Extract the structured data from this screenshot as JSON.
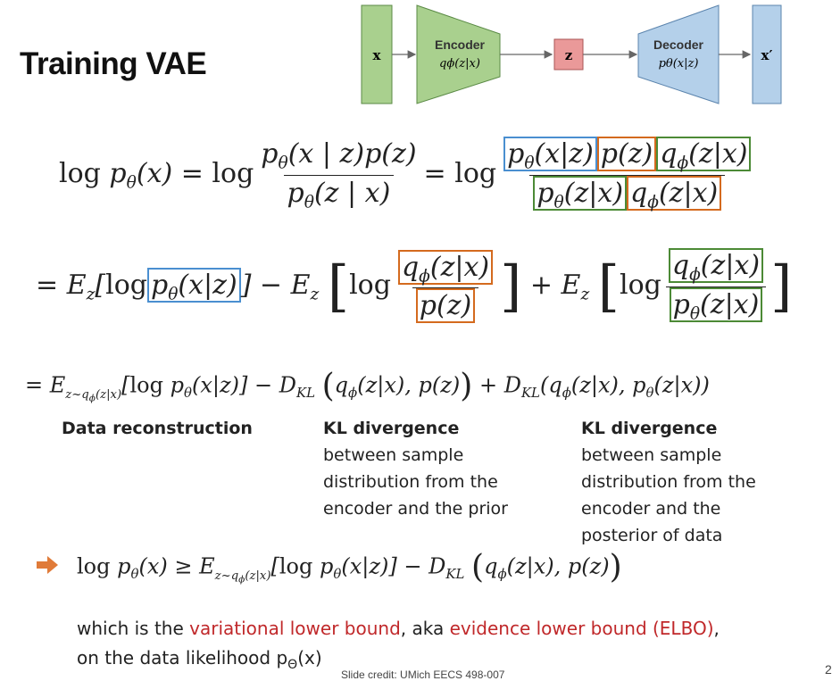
{
  "slide": {
    "title": "Training VAE",
    "page_number": "2"
  },
  "diagram": {
    "input_label": "x",
    "encoder_title": "Encoder",
    "encoder_dist": "qϕ(z|x)",
    "latent_label": "z",
    "decoder_title": "Decoder",
    "decoder_dist": "pθ(x|z)",
    "output_label": "x′",
    "colors": {
      "green": "#a9d08e",
      "red": "#ea9999",
      "blue": "#b4d0ea"
    }
  },
  "equations": {
    "line1": "log pθ(x) = log [pθ(x | z)p(z) / pθ(z | x)] = log [pθ(x|z)p(z)qϕ(z|x) / pθ(z|x)qϕ(z|x)]",
    "line2": "= Ez[log pθ(x|z)] − Ez[log qϕ(z|x)/p(z)] + Ez[log qϕ(z|x)/pθ(z|x)]",
    "line3": "= Ez~qϕ(z|x)[log pθ(x|z)] − DKL(qϕ(z|x), p(z)) + DKL(qϕ(z|x), pθ(z|x))",
    "bound": "log pθ(x) ≥ Ez~qϕ(z|x)[log pθ(x|z)] − DKL(qϕ(z|x), p(z))"
  },
  "labels": {
    "col1_bold": "Data reconstruction",
    "col2_bold": "KL divergence",
    "col2_rest": "between sample distribution from the encoder and the prior",
    "col3_bold": "KL divergence",
    "col3_rest": " between sample distribution from the encoder and the posterior of data"
  },
  "conclusion": {
    "part1": "which is the ",
    "highlight1": "variational lower bound",
    "part2": ", aka ",
    "highlight2": "evidence lower bound (ELBO)",
    "part3": ",",
    "part4": "on the data likelihood p",
    "theta": "Θ",
    "part5": "(x)"
  },
  "credit": "Slide credit: UMich EECS 498-007",
  "colors": {
    "box_blue": "#4a8fd0",
    "box_orange": "#d46a1e",
    "box_green": "#4c8a36",
    "highlight_red": "#c0282a",
    "arrow_orange": "#e07b39"
  }
}
